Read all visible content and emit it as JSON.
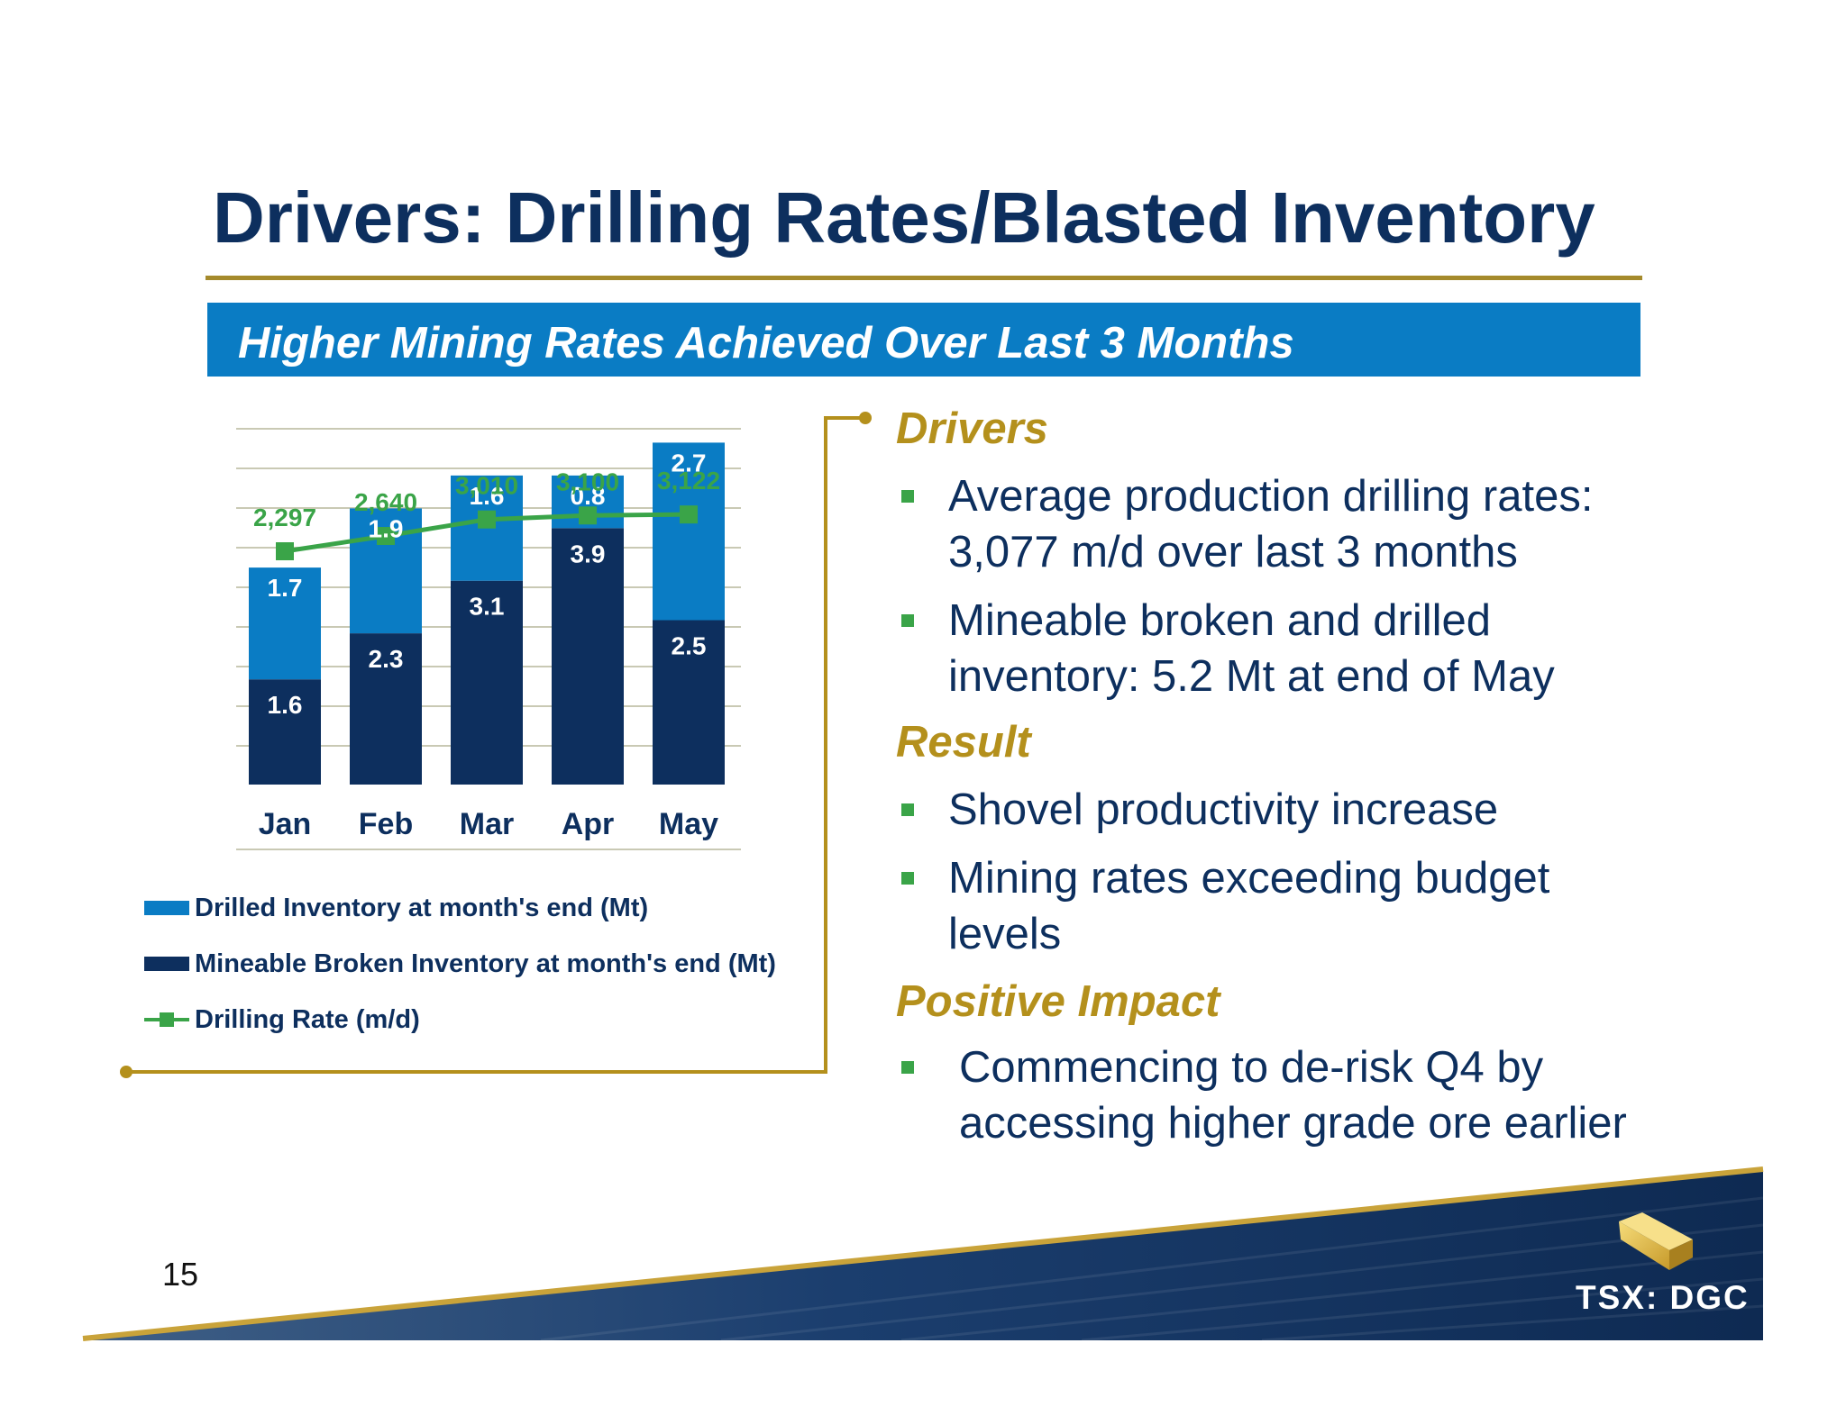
{
  "slide": {
    "title": "Drivers: Drilling Rates/Blasted Inventory",
    "subtitle": "Higher Mining Rates Achieved Over Last 3 Months",
    "page_number": "15",
    "ticker": "TSX: DGC",
    "logo_icon": "gold-bar-icon"
  },
  "colors": {
    "title": "#0d2f5e",
    "gold_accent": "#b4901c",
    "subtitle_bar": "#0a7cc4",
    "drilled_inventory": "#0a7cc4",
    "broken_inventory": "#0d2f5e",
    "drilling_rate": "#3aa448"
  },
  "chart_data": {
    "type": "bar",
    "stacked": true,
    "categories": [
      "Jan",
      "Feb",
      "Mar",
      "Apr",
      "May"
    ],
    "series": [
      {
        "name": "Mineable Broken Inventory at month's end (Mt)",
        "type": "bar",
        "values": [
          1.6,
          2.3,
          3.1,
          3.9,
          2.5
        ],
        "color": "#0d2f5e"
      },
      {
        "name": "Drilled Inventory at month's end (Mt)",
        "type": "bar",
        "values": [
          1.7,
          1.9,
          1.6,
          0.8,
          2.7
        ],
        "color": "#0a7cc4"
      },
      {
        "name": "Drilling Rate (m/d)",
        "type": "line",
        "values": [
          2297,
          2640,
          3010,
          3100,
          3122
        ],
        "labels": [
          "2,297",
          "2,640",
          "3,010",
          "3,100",
          "3,122"
        ],
        "color": "#3aa448",
        "marker": "square"
      }
    ],
    "grid": true,
    "axes_visible": false,
    "legend_position": "bottom",
    "legend_order": [
      "Drilled Inventory at month's end (Mt)",
      "Mineable Broken Inventory at month's end (Mt)",
      "Drilling Rate (m/d)"
    ]
  },
  "sections": [
    {
      "heading": "Drivers",
      "bullets": [
        "Average production drilling rates: 3,077 m/d over last 3 months",
        "Mineable broken and drilled inventory: 5.2 Mt at end of May"
      ]
    },
    {
      "heading": "Result",
      "bullets": [
        "Shovel productivity increase",
        "Mining rates exceeding budget levels"
      ]
    },
    {
      "heading": "Positive Impact",
      "bullets": [
        "Commencing to de-risk Q4 by accessing higher grade ore earlier"
      ]
    }
  ]
}
